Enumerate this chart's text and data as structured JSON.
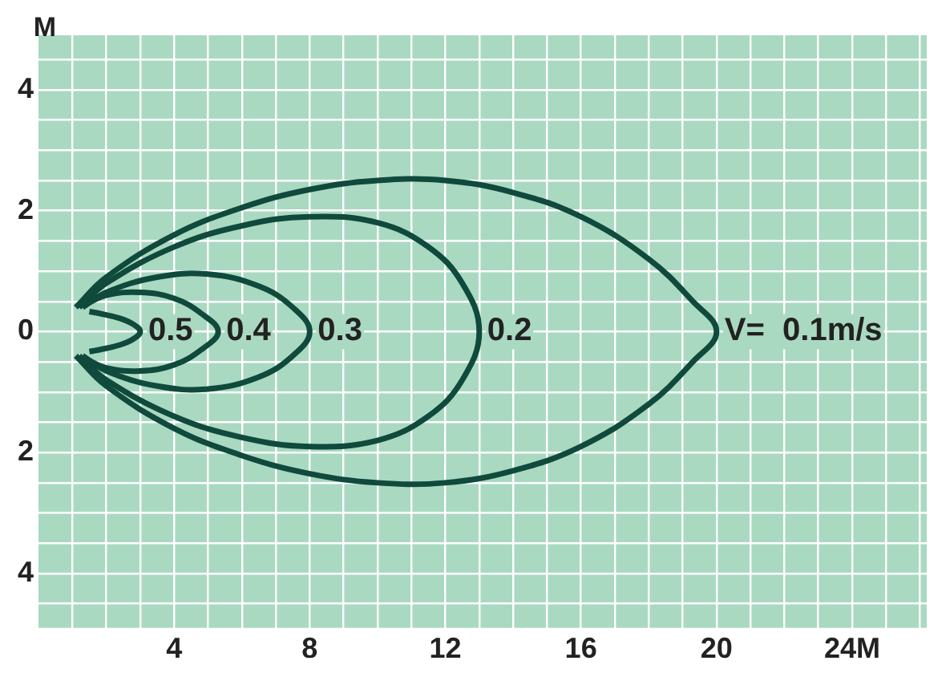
{
  "chart_data": {
    "type": "line",
    "ylabel": "M",
    "xlim": [
      0,
      26.2
    ],
    "ylim": [
      -4.9,
      4.9
    ],
    "xticks": [
      {
        "value": 1,
        "label": null
      },
      {
        "value": 2,
        "label": null
      },
      {
        "value": 3,
        "label": null
      },
      4,
      {
        "value": 5,
        "label": null
      },
      {
        "value": 6,
        "label": null
      },
      {
        "value": 7,
        "label": null
      },
      8,
      {
        "value": 9,
        "label": null
      },
      {
        "value": 10,
        "label": null
      },
      {
        "value": 11,
        "label": null
      },
      12,
      {
        "value": 13,
        "label": null
      },
      {
        "value": 14,
        "label": null
      },
      {
        "value": 15,
        "label": null
      },
      16,
      {
        "value": 17,
        "label": null
      },
      {
        "value": 18,
        "label": null
      },
      {
        "value": 19,
        "label": null
      },
      20,
      {
        "value": 21,
        "label": null
      },
      {
        "value": 22,
        "label": null
      },
      {
        "value": 23,
        "label": null
      },
      {
        "value": 24,
        "label": "24M"
      },
      {
        "value": 25,
        "label": null
      },
      {
        "value": 26,
        "label": null
      }
    ],
    "yticks": [
      {
        "value": -4.5,
        "label": null
      },
      {
        "value": -4,
        "label": "4"
      },
      {
        "value": -3.5,
        "label": null
      },
      {
        "value": -3,
        "label": null
      },
      {
        "value": -2.5,
        "label": null
      },
      {
        "value": -2,
        "label": "2"
      },
      {
        "value": -1.5,
        "label": null
      },
      {
        "value": -1,
        "label": null
      },
      {
        "value": -0.5,
        "label": null
      },
      0,
      {
        "value": 0.5,
        "label": null
      },
      {
        "value": 1,
        "label": null
      },
      {
        "value": 1.5,
        "label": null
      },
      2,
      {
        "value": 2.5,
        "label": null
      },
      {
        "value": 3,
        "label": null
      },
      {
        "value": 3.5,
        "label": null
      },
      4,
      {
        "value": 4.5,
        "label": null
      }
    ],
    "grid": true,
    "marker": "none",
    "line_style": "solid",
    "series": [
      {
        "name": "0.5",
        "color": "#0f4a3c",
        "x": [
          1.5,
          1.8,
          2.4,
          2.8,
          3,
          2.8,
          2.4,
          1.8,
          1.5
        ],
        "values": [
          0.33,
          0.3,
          0.22,
          0.12,
          0,
          -0.12,
          -0.22,
          -0.3,
          -0.33
        ]
      },
      {
        "name": "0.4",
        "color": "#0f4a3c",
        "x": [
          1.4,
          2,
          3,
          4,
          4.8,
          5.3,
          4.8,
          4,
          3,
          2,
          1.4
        ],
        "values": [
          0.45,
          0.6,
          0.65,
          0.55,
          0.3,
          0,
          -0.3,
          -0.55,
          -0.65,
          -0.6,
          -0.45
        ]
      },
      {
        "name": "0.3",
        "color": "#0f4a3c",
        "x": [
          1.3,
          2,
          3.5,
          5,
          6.5,
          7.5,
          8,
          7.5,
          6.5,
          5,
          3.5,
          2,
          1.3
        ],
        "values": [
          0.4,
          0.65,
          0.9,
          0.95,
          0.75,
          0.4,
          0,
          -0.4,
          -0.75,
          -0.95,
          -0.9,
          -0.65,
          -0.4
        ]
      },
      {
        "name": "0.2",
        "color": "#0f4a3c",
        "x": [
          1.2,
          2,
          4,
          6,
          8,
          10,
          11.5,
          12.5,
          13,
          12.5,
          11.5,
          10,
          8,
          6,
          4,
          2,
          1.2
        ],
        "values": [
          0.4,
          0.8,
          1.4,
          1.75,
          1.9,
          1.8,
          1.4,
          0.8,
          0,
          -0.8,
          -1.4,
          -1.8,
          -1.9,
          -1.75,
          -1.4,
          -0.8,
          -0.4
        ]
      },
      {
        "name": "V=  0.1m/s",
        "color": "#0f4a3c",
        "x": [
          1.1,
          2,
          4,
          6,
          8,
          10,
          12,
          14,
          16,
          18,
          19.3,
          20,
          19.3,
          18,
          16,
          14,
          12,
          10,
          8,
          6,
          4,
          2,
          1.1
        ],
        "values": [
          0.4,
          0.9,
          1.6,
          2.05,
          2.35,
          2.5,
          2.5,
          2.3,
          1.9,
          1.2,
          0.5,
          0,
          -0.5,
          -1.2,
          -1.9,
          -2.3,
          -2.5,
          -2.5,
          -2.35,
          -2.05,
          -1.6,
          -0.9,
          -0.4
        ]
      }
    ]
  }
}
